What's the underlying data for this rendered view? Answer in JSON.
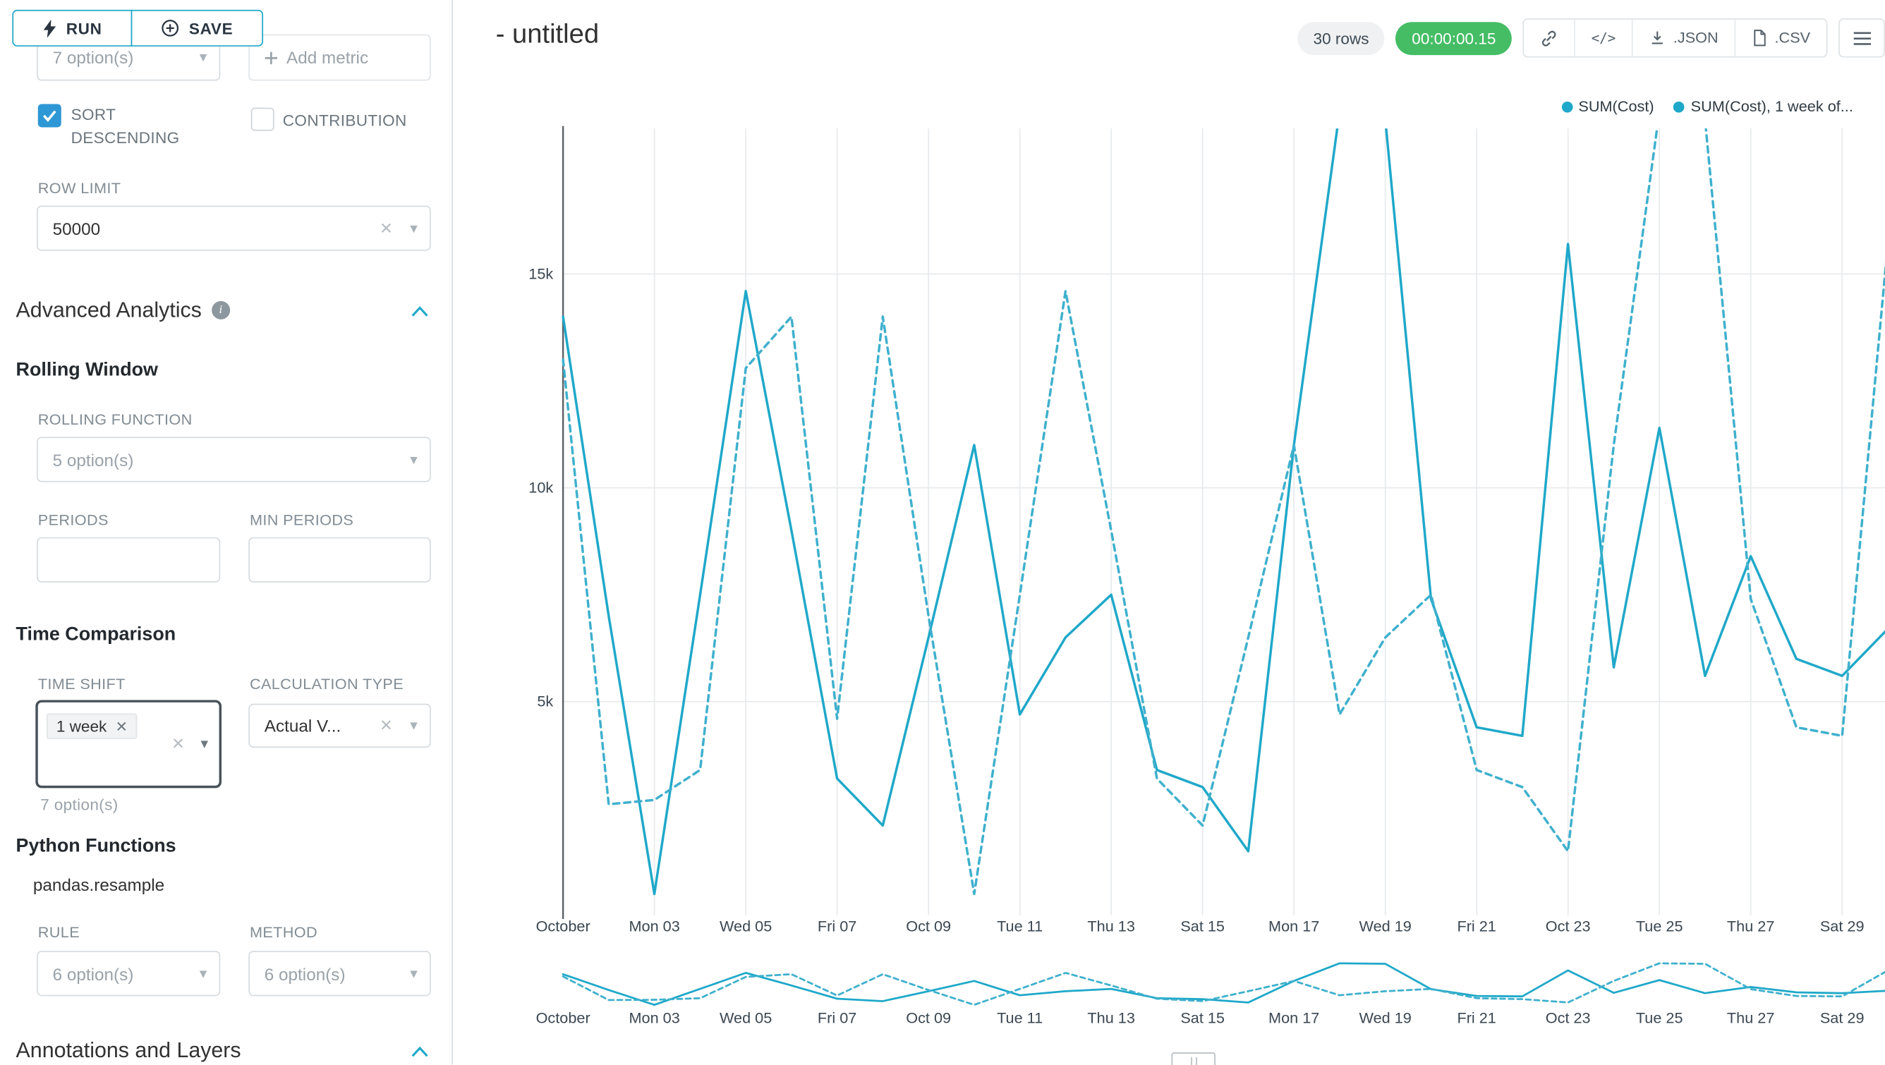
{
  "colors": {
    "accent": "#1FA8C9",
    "success": "#45bd65",
    "checkbox": "#2e97d5",
    "series_solid": "#1FA8C9",
    "series_dashed": "#3fb0cd"
  },
  "sidebar": {
    "run_label": "RUN",
    "save_label": "SAVE",
    "metric_placeholder": "7 option(s)",
    "add_metric_label": "Add metric",
    "sort_descending_label": "SORT DESCENDING",
    "contribution_label": "CONTRIBUTION",
    "row_limit_label": "ROW LIMIT",
    "row_limit_value": "50000",
    "advanced_analytics_title": "Advanced Analytics",
    "rolling_window": {
      "title": "Rolling Window",
      "rolling_function_label": "ROLLING FUNCTION",
      "rolling_function_placeholder": "5 option(s)",
      "periods_label": "PERIODS",
      "min_periods_label": "MIN PERIODS"
    },
    "time_comparison": {
      "title": "Time Comparison",
      "time_shift_label": "TIME SHIFT",
      "time_shift_tag": "1 week",
      "time_shift_helper": "7 option(s)",
      "calculation_type_label": "CALCULATION TYPE",
      "calculation_type_value": "Actual V..."
    },
    "python_functions": {
      "title": "Python Functions",
      "subtitle": "pandas.resample",
      "rule_label": "RULE",
      "rule_placeholder": "6 option(s)",
      "method_label": "METHOD",
      "method_placeholder": "6 option(s)"
    },
    "annotations_title": "Annotations and Layers"
  },
  "header": {
    "title": "- untitled",
    "rows_badge": "30 rows",
    "timer_badge": "00:00:00.15",
    "json_label": ".JSON",
    "csv_label": ".CSV"
  },
  "icons": {
    "run": "lightning-bolt",
    "save": "plus-circle",
    "share": "link",
    "embed": "code",
    "export_json": "download",
    "export_csv": "file",
    "more": "hamburger-menu",
    "collapse": "chevron-up",
    "dropdown": "caret-down",
    "info": "info-circle"
  },
  "chart_data": {
    "type": "line",
    "title": "- untitled",
    "xlabel": "",
    "ylabel": "",
    "values_unit": "thousands (k)",
    "ylim": [
      0,
      18.4
    ],
    "yticks": [
      5,
      10,
      15
    ],
    "ytick_labels": [
      "5k",
      "10k",
      "15k"
    ],
    "grid": true,
    "legend_position": "top-right",
    "x_tick_labels": [
      "October",
      "Mon 03",
      "Wed 05",
      "Fri 07",
      "Oct 09",
      "Tue 11",
      "Thu 13",
      "Sat 15",
      "Mon 17",
      "Wed 19",
      "Fri 21",
      "Oct 23",
      "Tue 25",
      "Thu 27",
      "Sat 29"
    ],
    "x": [
      "Oct 01",
      "Oct 02",
      "Oct 03",
      "Oct 04",
      "Oct 05",
      "Oct 06",
      "Oct 07",
      "Oct 08",
      "Oct 09",
      "Oct 10",
      "Oct 11",
      "Oct 12",
      "Oct 13",
      "Oct 14",
      "Oct 15",
      "Oct 16",
      "Oct 17",
      "Oct 18",
      "Oct 19",
      "Oct 20",
      "Oct 21",
      "Oct 22",
      "Oct 23",
      "Oct 24",
      "Oct 25",
      "Oct 26",
      "Oct 27",
      "Oct 28",
      "Oct 29",
      "Oct 30"
    ],
    "series": [
      {
        "name": "SUM(Cost)",
        "style": "solid",
        "color": "#1FA8C9",
        "values": [
          14.0,
          7.0,
          0.5,
          7.5,
          14.6,
          9.0,
          3.2,
          2.1,
          6.5,
          11.0,
          4.7,
          6.5,
          7.5,
          3.4,
          3.0,
          1.5,
          11.0,
          18.8,
          18.6,
          7.4,
          4.4,
          4.2,
          15.7,
          5.8,
          11.4,
          5.6,
          8.4,
          6.0,
          5.6,
          6.7
        ]
      },
      {
        "name": "SUM(Cost), 1 week of...",
        "style": "dashed",
        "color": "#3fb0cd",
        "values": [
          13.0,
          2.6,
          2.7,
          3.4,
          12.8,
          14.0,
          4.6,
          14.0,
          7.0,
          0.5,
          7.5,
          14.6,
          9.0,
          3.2,
          2.1,
          6.5,
          11.0,
          4.7,
          6.5,
          7.5,
          3.4,
          3.0,
          1.5,
          11.0,
          18.8,
          18.6,
          7.4,
          4.4,
          4.2,
          15.7
        ]
      }
    ]
  }
}
